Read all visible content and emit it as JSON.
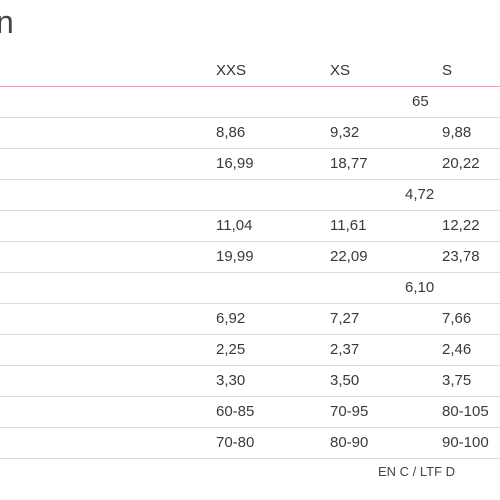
{
  "title": "n",
  "columns": [
    "XXS",
    "XS",
    "S"
  ],
  "rows": [
    {
      "span": "65"
    },
    {
      "cells": [
        "8,86",
        "9,32",
        "9,88"
      ]
    },
    {
      "cells": [
        "16,99",
        "18,77",
        "20,22"
      ]
    },
    {
      "span": "4,72"
    },
    {
      "cells": [
        "11,04",
        "11,61",
        "12,22"
      ]
    },
    {
      "cells": [
        "19,99",
        "22,09",
        "23,78"
      ]
    },
    {
      "span": "6,10"
    },
    {
      "cells": [
        "6,92",
        "7,27",
        "7,66"
      ]
    },
    {
      "cells": [
        "2,25",
        "2,37",
        "2,46"
      ]
    },
    {
      "cells": [
        "3,30",
        "3,50",
        "3,75"
      ]
    },
    {
      "cells": [
        "60-85",
        "70-95",
        "80-105"
      ]
    },
    {
      "cells": [
        "70-80",
        "80-90",
        "90-100"
      ]
    }
  ],
  "footer_note": "EN C / LTF D"
}
